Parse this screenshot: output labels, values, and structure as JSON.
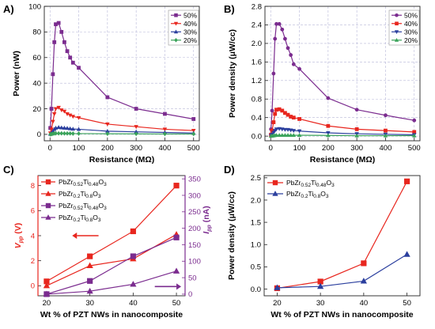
{
  "chart_data": [
    {
      "id": "A",
      "panel_label": "A)",
      "type": "line",
      "xlabel": "Resistance (MΩ)",
      "ylabel": "Power (nW)",
      "xlim": [
        -20,
        520
      ],
      "ylim": [
        -5,
        100
      ],
      "xticks": [
        0,
        100,
        200,
        300,
        400,
        500
      ],
      "yticks": [
        0,
        20,
        40,
        60,
        80,
        100
      ],
      "grid": true,
      "legend_position": "top-right",
      "series": [
        {
          "name": "50%",
          "color": "#7b2c8f",
          "marker": "square",
          "x": [
            1,
            5,
            10,
            15,
            20,
            30,
            40,
            50,
            60,
            70,
            80,
            100,
            200,
            300,
            400,
            500
          ],
          "y": [
            5,
            20,
            47,
            72,
            86,
            87,
            80,
            72,
            65,
            60,
            56,
            52,
            29,
            20,
            16,
            12
          ]
        },
        {
          "name": "40%",
          "color": "#e8261e",
          "marker": "triangle-down",
          "x": [
            1,
            5,
            10,
            15,
            20,
            30,
            40,
            50,
            60,
            70,
            80,
            100,
            200,
            300,
            400,
            500
          ],
          "y": [
            1,
            4,
            10,
            16,
            20,
            21,
            19,
            18,
            16,
            15,
            14,
            13,
            8,
            6,
            4,
            3
          ]
        },
        {
          "name": "30%",
          "color": "#2b3f9e",
          "marker": "triangle-up",
          "x": [
            1,
            5,
            10,
            15,
            20,
            30,
            40,
            50,
            60,
            70,
            80,
            100,
            200,
            300,
            400,
            500
          ],
          "y": [
            0.2,
            1,
            2.5,
            4,
            5,
            5.5,
            5.2,
            5,
            4.8,
            4.5,
            4.2,
            4,
            2.5,
            2,
            1.5,
            1
          ]
        },
        {
          "name": "20%",
          "color": "#3aa35a",
          "marker": "diamond",
          "x": [
            1,
            5,
            10,
            15,
            20,
            30,
            40,
            50,
            60,
            70,
            80,
            100,
            200,
            300,
            400,
            500
          ],
          "y": [
            0,
            0.2,
            0.5,
            0.7,
            0.8,
            0.8,
            0.8,
            0.7,
            0.7,
            0.7,
            0.6,
            0.6,
            0.5,
            0.4,
            0.3,
            0.3
          ]
        }
      ]
    },
    {
      "id": "B",
      "panel_label": "B)",
      "type": "line",
      "xlabel": "Resistance (MΩ)",
      "ylabel": "Power density (μW/cc)",
      "xlim": [
        -20,
        520
      ],
      "ylim": [
        -0.1,
        2.8
      ],
      "xticks": [
        0,
        100,
        200,
        300,
        400,
        500
      ],
      "yticks": [
        0.0,
        0.4,
        0.8,
        1.2,
        1.6,
        2.0,
        2.4,
        2.8
      ],
      "grid": true,
      "legend_position": "top-right",
      "series": [
        {
          "name": "50%",
          "color": "#7b2c8f",
          "marker": "circle",
          "x": [
            1,
            5,
            10,
            15,
            20,
            30,
            40,
            50,
            60,
            70,
            80,
            100,
            200,
            300,
            400,
            500
          ],
          "y": [
            0.15,
            0.55,
            1.35,
            2.1,
            2.42,
            2.42,
            2.3,
            2.1,
            1.9,
            1.75,
            1.55,
            1.45,
            0.82,
            0.57,
            0.45,
            0.34
          ]
        },
        {
          "name": "40%",
          "color": "#e8261e",
          "marker": "square",
          "x": [
            1,
            5,
            10,
            15,
            20,
            30,
            40,
            50,
            60,
            70,
            80,
            100,
            200,
            300,
            400,
            500
          ],
          "y": [
            0.03,
            0.12,
            0.3,
            0.48,
            0.57,
            0.58,
            0.55,
            0.5,
            0.46,
            0.42,
            0.4,
            0.37,
            0.22,
            0.15,
            0.12,
            0.09
          ]
        },
        {
          "name": "30%",
          "color": "#2b3f9e",
          "marker": "triangle-down",
          "x": [
            1,
            5,
            10,
            15,
            20,
            30,
            40,
            50,
            60,
            70,
            80,
            100,
            200,
            300,
            400,
            500
          ],
          "y": [
            0.01,
            0.04,
            0.08,
            0.12,
            0.15,
            0.16,
            0.15,
            0.14,
            0.14,
            0.13,
            0.12,
            0.11,
            0.07,
            0.05,
            0.04,
            0.03
          ]
        },
        {
          "name": "20%",
          "color": "#3aa35a",
          "marker": "triangle-up",
          "x": [
            1,
            5,
            10,
            15,
            20,
            30,
            40,
            50,
            60,
            70,
            80,
            100,
            200,
            300,
            400,
            500
          ],
          "y": [
            0,
            0.005,
            0.01,
            0.015,
            0.02,
            0.02,
            0.02,
            0.02,
            0.02,
            0.02,
            0.02,
            0.02,
            0.015,
            0.01,
            0.01,
            0.01
          ]
        }
      ]
    },
    {
      "id": "C",
      "panel_label": "C)",
      "type": "line",
      "xlabel": "Wt % of PZT NWs in nanocomposite",
      "ylabel_left": "V",
      "ylabel_left_sub": "pp",
      "ylabel_left_unit": " (V)",
      "ylabel_right": "I",
      "ylabel_right_sub": "pp",
      "ylabel_right_unit": " (nA)",
      "left_color": "#e8261e",
      "right_color": "#7b2c8f",
      "xlim": [
        18,
        52
      ],
      "ylim_left": [
        -0.8,
        8.8
      ],
      "ylim_right": [
        -5,
        360
      ],
      "xticks": [
        20,
        30,
        40,
        50
      ],
      "yticks_left": [
        0,
        2,
        4,
        6,
        8
      ],
      "yticks_right": [
        0,
        50,
        100,
        150,
        200,
        250,
        300,
        350
      ],
      "grid": false,
      "legend_position": "top-left",
      "series": [
        {
          "name_parts": [
            [
              "PbZr",
              ""
            ],
            [
              "0.52",
              "sub"
            ],
            [
              "Ti",
              ""
            ],
            [
              "0.48",
              "sub"
            ],
            [
              "O",
              ""
            ],
            [
              "3",
              "sub"
            ]
          ],
          "axis": "left",
          "color": "#e8261e",
          "marker": "square",
          "x": [
            20,
            30,
            40,
            50
          ],
          "y": [
            0.35,
            2.35,
            4.35,
            8.0
          ]
        },
        {
          "name_parts": [
            [
              "PbZr",
              ""
            ],
            [
              "0.2",
              "sub"
            ],
            [
              "Ti",
              ""
            ],
            [
              "0.8",
              "sub"
            ],
            [
              "O",
              ""
            ],
            [
              "3",
              "sub"
            ]
          ],
          "axis": "left",
          "color": "#e8261e",
          "marker": "triangle-up",
          "x": [
            20,
            30,
            40,
            50
          ],
          "y": [
            0.0,
            1.6,
            2.15,
            4.1
          ]
        },
        {
          "name_parts": [
            [
              "PbZr",
              ""
            ],
            [
              "0.52",
              "sub"
            ],
            [
              "Ti",
              ""
            ],
            [
              "0.48",
              "sub"
            ],
            [
              "O",
              ""
            ],
            [
              "3",
              "sub"
            ]
          ],
          "axis": "right",
          "color": "#7b2c8f",
          "marker": "square",
          "x": [
            20,
            30,
            40,
            50
          ],
          "y": [
            0,
            40,
            115,
            172
          ]
        },
        {
          "name_parts": [
            [
              "PbZr",
              ""
            ],
            [
              "0.2",
              "sub"
            ],
            [
              "Ti",
              ""
            ],
            [
              "0.8",
              "sub"
            ],
            [
              "O",
              ""
            ],
            [
              "3",
              "sub"
            ]
          ],
          "axis": "right",
          "color": "#7b2c8f",
          "marker": "triangle-up",
          "x": [
            20,
            30,
            40,
            50
          ],
          "y": [
            0,
            9,
            30,
            70
          ]
        }
      ],
      "arrows": [
        {
          "direction": "left",
          "color": "#e8261e",
          "x": [
            32,
            27
          ],
          "y_left": 4.0
        },
        {
          "direction": "right",
          "color": "#7b2c8f",
          "x": [
            45,
            50
          ],
          "y_right": 23
        }
      ]
    },
    {
      "id": "D",
      "panel_label": "D)",
      "type": "line",
      "xlabel": "Wt % of PZT NWs in nanocomposite",
      "ylabel": "Power density (μW/cc)",
      "xlim": [
        17,
        53
      ],
      "ylim": [
        -0.15,
        2.55
      ],
      "xticks": [
        20,
        30,
        40,
        50
      ],
      "yticks": [
        0.0,
        0.5,
        1.0,
        1.5,
        2.0,
        2.5
      ],
      "grid": false,
      "legend_position": "top-left",
      "series": [
        {
          "name_parts": [
            [
              "PbZr",
              ""
            ],
            [
              "0.52",
              "sub"
            ],
            [
              "Ti",
              ""
            ],
            [
              "0.48",
              "sub"
            ],
            [
              "O",
              ""
            ],
            [
              "3",
              "sub"
            ]
          ],
          "color": "#e8261e",
          "marker": "square",
          "x": [
            20,
            30,
            40,
            50
          ],
          "y": [
            0.02,
            0.17,
            0.58,
            2.42
          ]
        },
        {
          "name_parts": [
            [
              "PbZr",
              ""
            ],
            [
              "0.2",
              "sub"
            ],
            [
              "Ti",
              ""
            ],
            [
              "0.8",
              "sub"
            ],
            [
              "O",
              ""
            ],
            [
              "3",
              "sub"
            ]
          ],
          "color": "#2b3f9e",
          "marker": "triangle-up",
          "x": [
            20,
            30,
            40,
            50
          ],
          "y": [
            0.03,
            0.06,
            0.18,
            0.78
          ]
        }
      ]
    }
  ]
}
